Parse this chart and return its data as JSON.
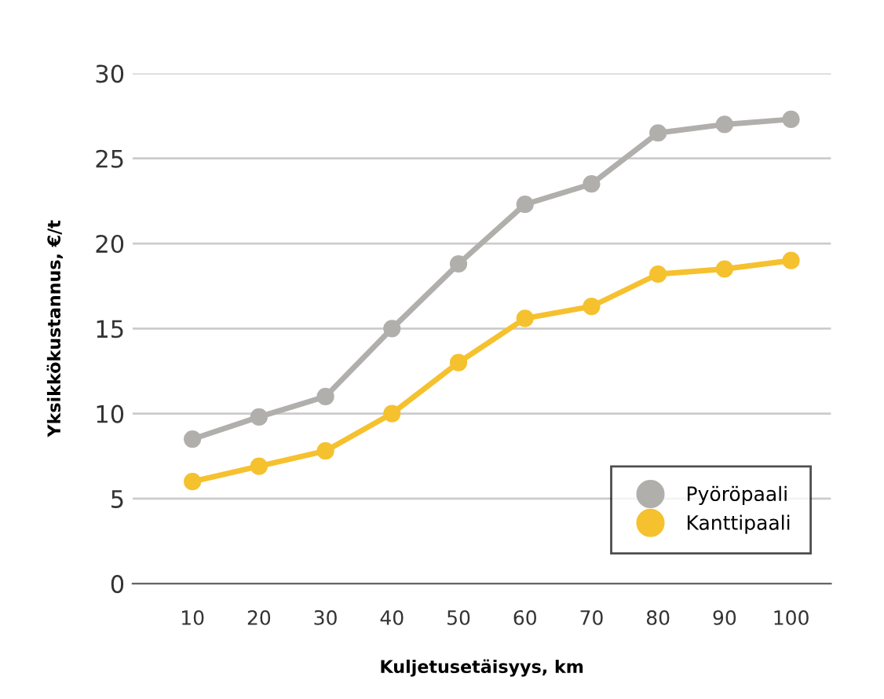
{
  "chart_data": {
    "type": "line",
    "xlabel": "Kuljetusetäisyys, km",
    "ylabel": "Yksikkökustannus, €/t",
    "categories": [
      "10",
      "20",
      "30",
      "40",
      "50",
      "60",
      "70",
      "80",
      "90",
      "100"
    ],
    "series": [
      {
        "name": "Pyöröpaali",
        "color": "#b1afac",
        "values": [
          8.5,
          9.8,
          11.0,
          15.0,
          18.8,
          22.3,
          23.5,
          26.5,
          27.0,
          27.3
        ]
      },
      {
        "name": "Kanttipaali",
        "color": "#f5c12e",
        "values": [
          6.0,
          6.9,
          7.8,
          10.0,
          13.0,
          15.6,
          16.3,
          18.2,
          18.5,
          19.0
        ]
      }
    ],
    "ylim": [
      0,
      30
    ],
    "yticks": [
      0,
      5,
      10,
      15,
      20,
      25,
      30
    ],
    "grid": "y",
    "legend": "bottom right",
    "marker": "circle",
    "line_style": "solid"
  }
}
